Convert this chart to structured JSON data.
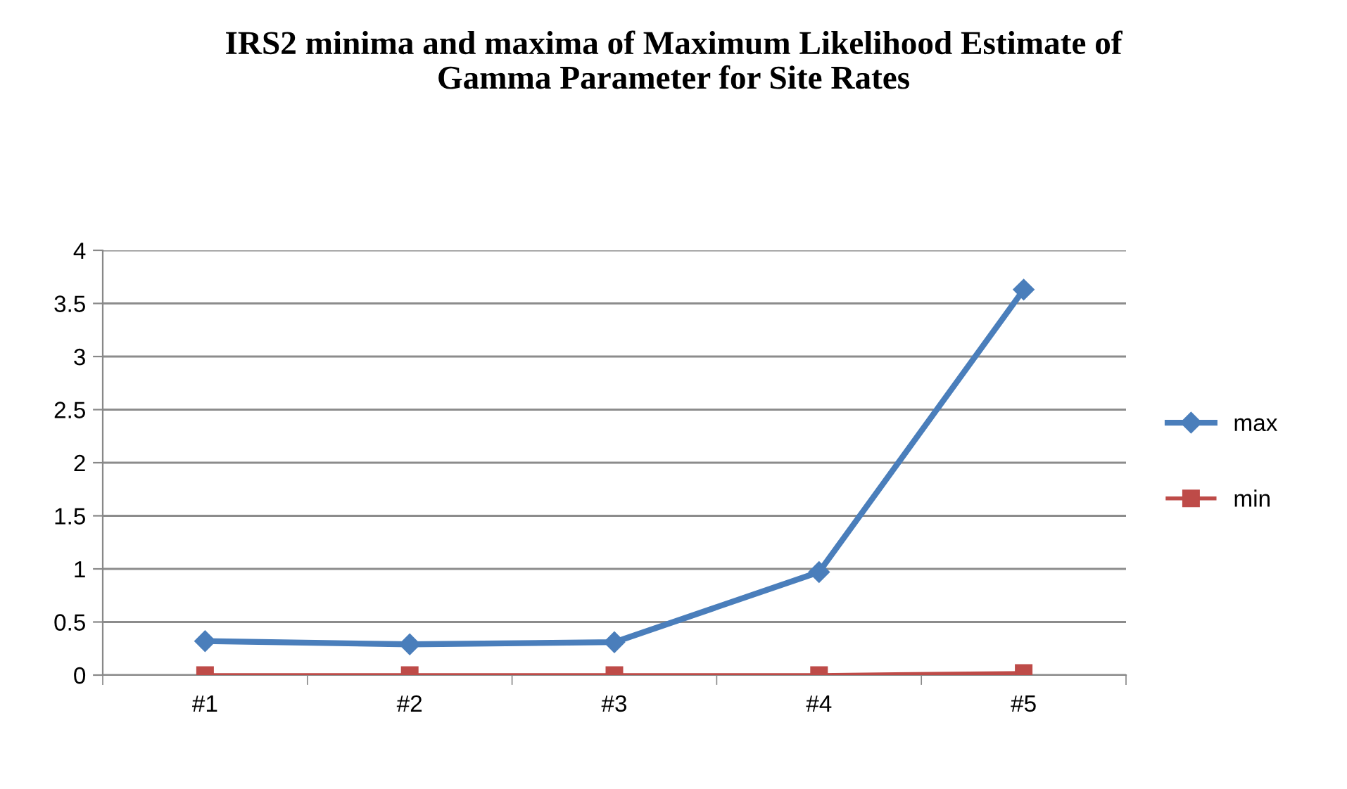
{
  "chart_data": {
    "type": "line",
    "title": "IRS2 minima and maxima of Maximum Likelihood Estimate of\nGamma Parameter for Site Rates",
    "categories": [
      "#1",
      "#2",
      "#3",
      "#4",
      "#5"
    ],
    "series": [
      {
        "name": "max",
        "color": "#4a7ebb",
        "values": [
          0.32,
          0.29,
          0.31,
          0.97,
          3.63
        ],
        "marker": "diamond"
      },
      {
        "name": "min",
        "color": "#be4b48",
        "values": [
          0,
          0,
          0,
          0,
          0.02
        ],
        "marker": "square"
      }
    ],
    "ylim": [
      0,
      4
    ],
    "yticks": [
      0,
      0.5,
      1,
      1.5,
      2,
      2.5,
      3,
      3.5,
      4
    ],
    "grid": "y",
    "legend": "right",
    "line_style": "solid"
  }
}
